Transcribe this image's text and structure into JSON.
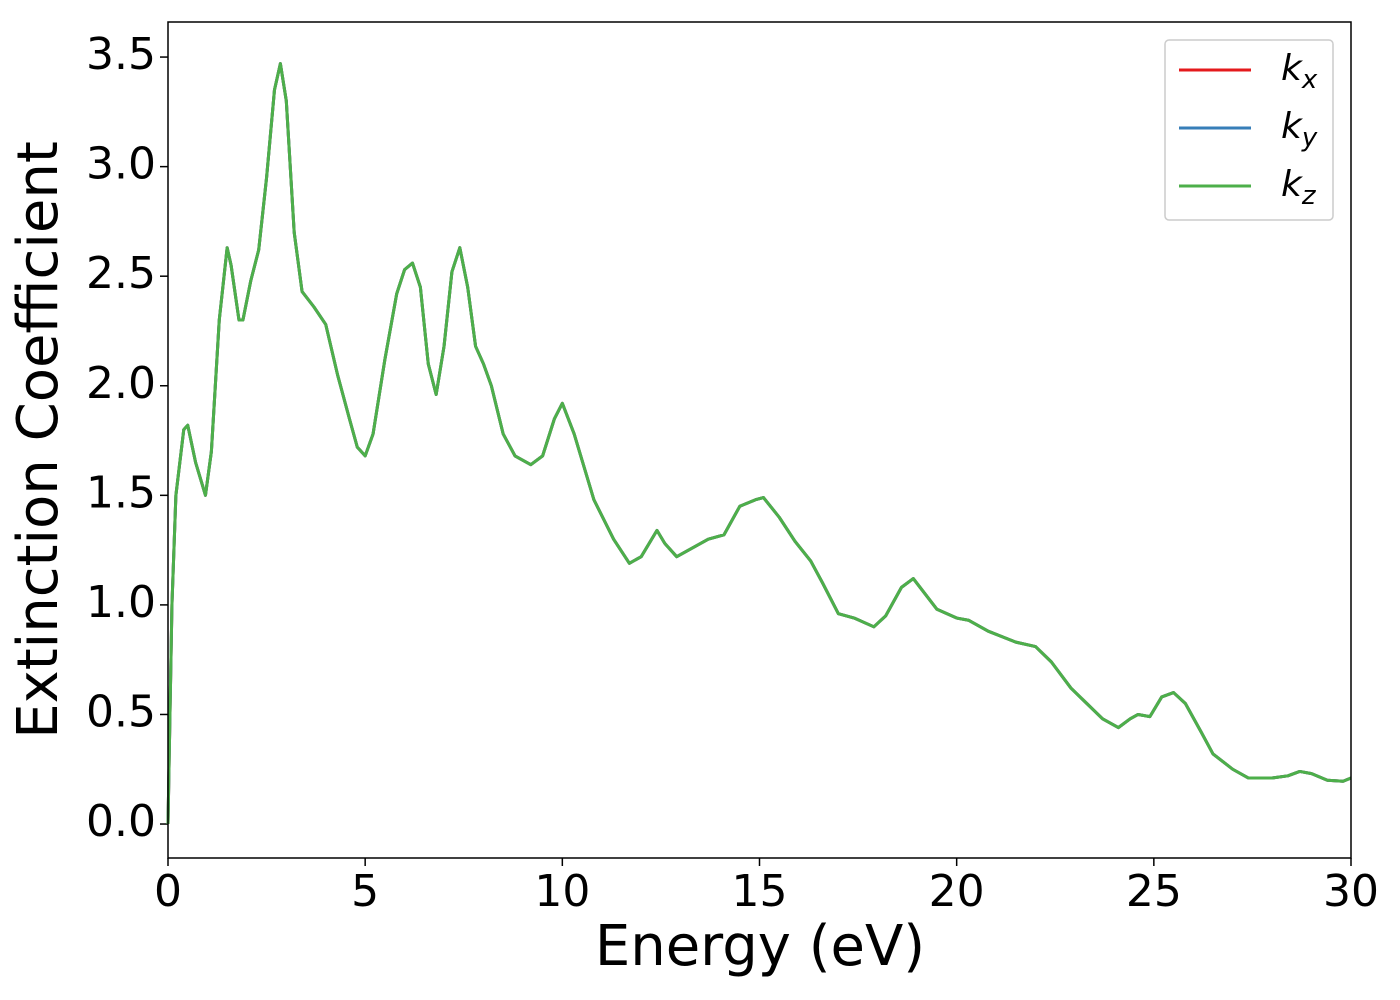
{
  "chart_data": {
    "type": "line",
    "xlabel": "Energy (eV)",
    "ylabel": "Extinction Coefficient",
    "x": [
      0,
      0.1,
      0.2,
      0.4,
      0.5,
      0.7,
      0.95,
      1.1,
      1.3,
      1.5,
      1.6,
      1.8,
      1.9,
      2.1,
      2.3,
      2.5,
      2.7,
      2.85,
      3.0,
      3.2,
      3.4,
      3.7,
      4.0,
      4.3,
      4.6,
      4.8,
      5.0,
      5.2,
      5.5,
      5.8,
      6.0,
      6.2,
      6.4,
      6.6,
      6.8,
      7.0,
      7.2,
      7.4,
      7.6,
      7.8,
      8.0,
      8.2,
      8.5,
      8.8,
      9.2,
      9.5,
      9.8,
      10.0,
      10.3,
      10.8,
      11.3,
      11.7,
      12.0,
      12.4,
      12.6,
      12.9,
      13.3,
      13.7,
      14.1,
      14.5,
      14.9,
      15.1,
      15.5,
      15.9,
      16.3,
      16.6,
      17.0,
      17.4,
      17.9,
      18.2,
      18.6,
      18.9,
      19.2,
      19.5,
      20.0,
      20.3,
      20.8,
      21.5,
      22.0,
      22.4,
      22.9,
      23.3,
      23.7,
      24.1,
      24.4,
      24.6,
      24.9,
      25.2,
      25.5,
      25.8,
      26.2,
      26.5,
      27.0,
      27.4,
      28.0,
      28.4,
      28.7,
      29.0,
      29.4,
      29.8,
      30
    ],
    "series": [
      {
        "name": "kx",
        "color": "#e41a1c",
        "values": [
          0,
          1.0,
          1.5,
          1.8,
          1.82,
          1.65,
          1.5,
          1.7,
          2.3,
          2.63,
          2.55,
          2.3,
          2.3,
          2.48,
          2.62,
          2.95,
          3.35,
          3.47,
          3.3,
          2.7,
          2.43,
          2.36,
          2.28,
          2.05,
          1.85,
          1.72,
          1.68,
          1.78,
          2.12,
          2.42,
          2.53,
          2.56,
          2.45,
          2.1,
          1.96,
          2.18,
          2.52,
          2.63,
          2.45,
          2.18,
          2.1,
          2.0,
          1.78,
          1.68,
          1.64,
          1.68,
          1.85,
          1.92,
          1.78,
          1.48,
          1.3,
          1.19,
          1.22,
          1.34,
          1.28,
          1.22,
          1.26,
          1.3,
          1.32,
          1.45,
          1.48,
          1.49,
          1.4,
          1.29,
          1.2,
          1.1,
          0.96,
          0.94,
          0.9,
          0.95,
          1.08,
          1.12,
          1.05,
          0.98,
          0.94,
          0.93,
          0.88,
          0.83,
          0.81,
          0.74,
          0.62,
          0.55,
          0.48,
          0.44,
          0.48,
          0.5,
          0.49,
          0.58,
          0.6,
          0.55,
          0.42,
          0.32,
          0.25,
          0.21,
          0.21,
          0.22,
          0.24,
          0.23,
          0.2,
          0.195,
          0.21
        ]
      },
      {
        "name": "ky",
        "color": "#377eb8",
        "values": [
          0,
          1.0,
          1.5,
          1.8,
          1.82,
          1.65,
          1.5,
          1.7,
          2.3,
          2.63,
          2.55,
          2.3,
          2.3,
          2.48,
          2.62,
          2.95,
          3.35,
          3.47,
          3.3,
          2.7,
          2.43,
          2.36,
          2.28,
          2.05,
          1.85,
          1.72,
          1.68,
          1.78,
          2.12,
          2.42,
          2.53,
          2.56,
          2.45,
          2.1,
          1.96,
          2.18,
          2.52,
          2.63,
          2.45,
          2.18,
          2.1,
          2.0,
          1.78,
          1.68,
          1.64,
          1.68,
          1.85,
          1.92,
          1.78,
          1.48,
          1.3,
          1.19,
          1.22,
          1.34,
          1.28,
          1.22,
          1.26,
          1.3,
          1.32,
          1.45,
          1.48,
          1.49,
          1.4,
          1.29,
          1.2,
          1.1,
          0.96,
          0.94,
          0.9,
          0.95,
          1.08,
          1.12,
          1.05,
          0.98,
          0.94,
          0.93,
          0.88,
          0.83,
          0.81,
          0.74,
          0.62,
          0.55,
          0.48,
          0.44,
          0.48,
          0.5,
          0.49,
          0.58,
          0.6,
          0.55,
          0.42,
          0.32,
          0.25,
          0.21,
          0.21,
          0.22,
          0.24,
          0.23,
          0.2,
          0.195,
          0.21
        ]
      },
      {
        "name": "kz",
        "color": "#4daf4a",
        "values": [
          0,
          1.0,
          1.5,
          1.8,
          1.82,
          1.65,
          1.5,
          1.7,
          2.3,
          2.63,
          2.55,
          2.3,
          2.3,
          2.48,
          2.62,
          2.95,
          3.35,
          3.47,
          3.3,
          2.7,
          2.43,
          2.36,
          2.28,
          2.05,
          1.85,
          1.72,
          1.68,
          1.78,
          2.12,
          2.42,
          2.53,
          2.56,
          2.45,
          2.1,
          1.96,
          2.18,
          2.52,
          2.63,
          2.45,
          2.18,
          2.1,
          2.0,
          1.78,
          1.68,
          1.64,
          1.68,
          1.85,
          1.92,
          1.78,
          1.48,
          1.3,
          1.19,
          1.22,
          1.34,
          1.28,
          1.22,
          1.26,
          1.3,
          1.32,
          1.45,
          1.48,
          1.49,
          1.4,
          1.29,
          1.2,
          1.1,
          0.96,
          0.94,
          0.9,
          0.95,
          1.08,
          1.12,
          1.05,
          0.98,
          0.94,
          0.93,
          0.88,
          0.83,
          0.81,
          0.74,
          0.62,
          0.55,
          0.48,
          0.44,
          0.48,
          0.5,
          0.49,
          0.58,
          0.6,
          0.55,
          0.42,
          0.32,
          0.25,
          0.21,
          0.21,
          0.22,
          0.24,
          0.23,
          0.2,
          0.195,
          0.21
        ]
      }
    ],
    "xlim": [
      0,
      30
    ],
    "xticks": [
      0,
      5,
      10,
      15,
      20,
      25,
      30
    ],
    "ylim": [
      -0.155,
      3.66
    ],
    "yticks": [
      {
        "value": 0,
        "label": "0.0"
      },
      0.5,
      {
        "value": 1,
        "label": "1.0"
      },
      1.5,
      {
        "value": 2,
        "label": "2.0"
      },
      2.5,
      {
        "value": 3,
        "label": "3.0"
      },
      3.5
    ],
    "grid": false,
    "legend": "upper right"
  }
}
